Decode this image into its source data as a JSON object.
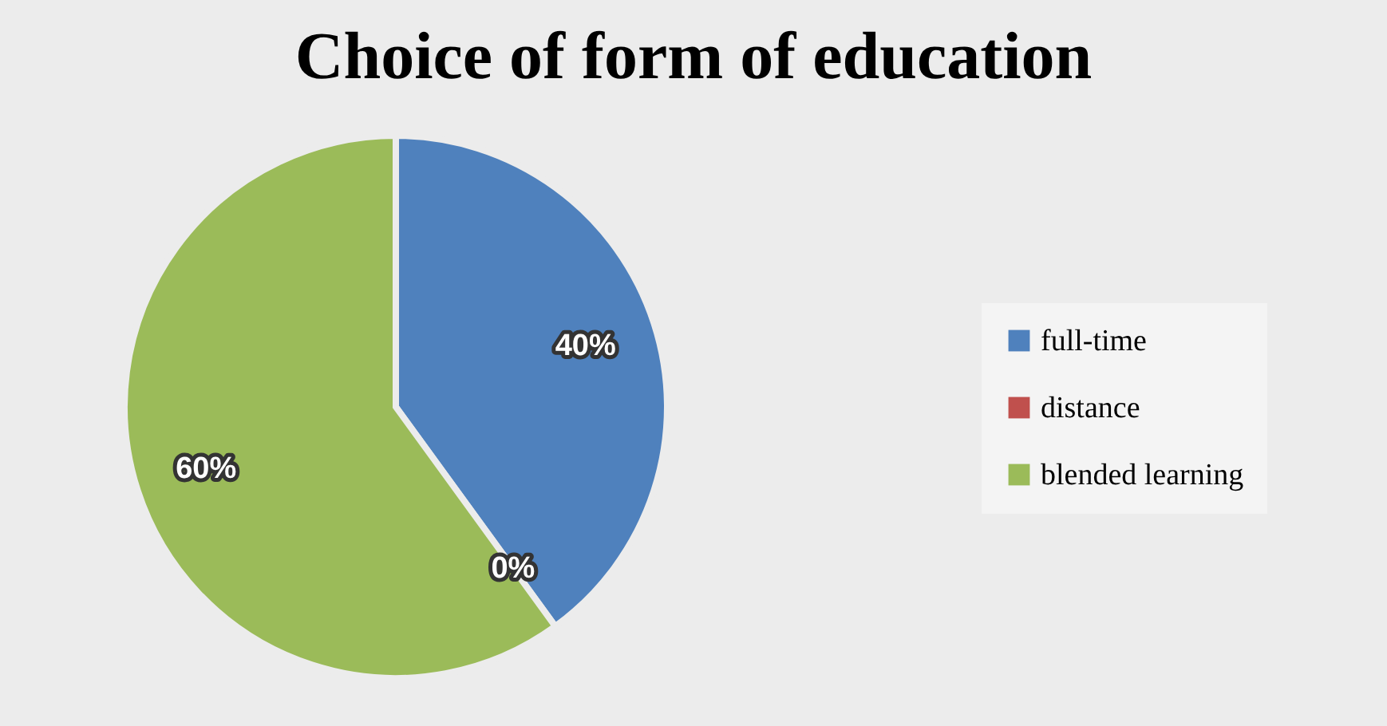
{
  "chart_data": {
    "type": "pie",
    "title": "Choice of form of education",
    "categories": [
      "full-time",
      "distance",
      "blended learning"
    ],
    "values": [
      40,
      0,
      60
    ],
    "colors": [
      "#4f81bd",
      "#c0504d",
      "#9bbb59"
    ],
    "value_labels": [
      "40%",
      "0%",
      "60%"
    ],
    "legend": "right"
  }
}
